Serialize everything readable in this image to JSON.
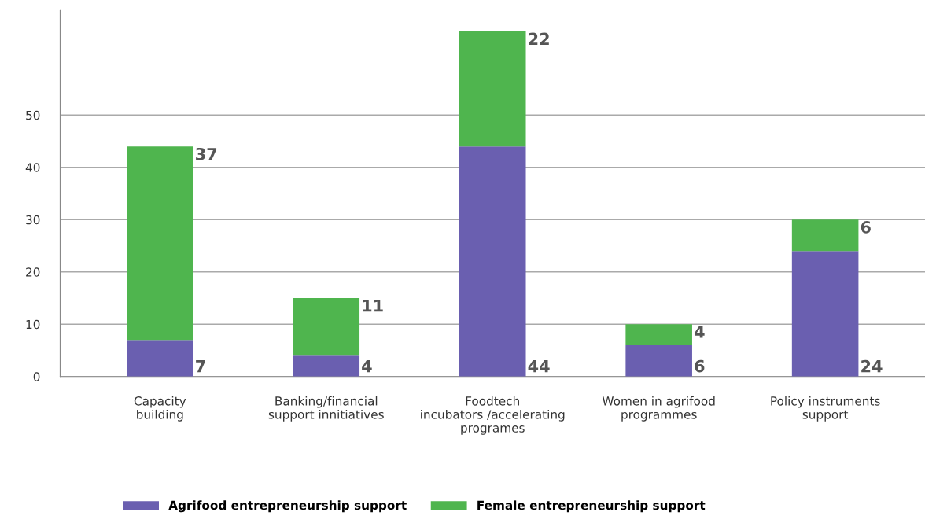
{
  "chart_data": {
    "type": "bar",
    "stacked": true,
    "categories": [
      "Capacity\nbuilding",
      "Banking/financial\nsupport innitiatives",
      "Foodtech\nincubators /accelerating\nprogrames",
      "Women in agrifood\nprogrammes",
      "Policy instruments\nsupport"
    ],
    "series": [
      {
        "name": "Agrifood entrepreneurship support",
        "color": "#6a5fb0",
        "values": [
          7,
          4,
          44,
          6,
          24
        ],
        "value_labels": [
          "7",
          "4",
          "44",
          "6",
          "24"
        ]
      },
      {
        "name": "Female entrepreneurship support",
        "color": "#4fb54e",
        "values": [
          37,
          11,
          22,
          4,
          6
        ],
        "value_labels": [
          "37",
          "11",
          "22",
          "4",
          "6"
        ]
      }
    ],
    "ylim": [
      0,
      70
    ],
    "yticks": [
      0,
      10,
      20,
      30,
      40,
      50
    ],
    "grid": "y",
    "legend": "bottom left"
  }
}
